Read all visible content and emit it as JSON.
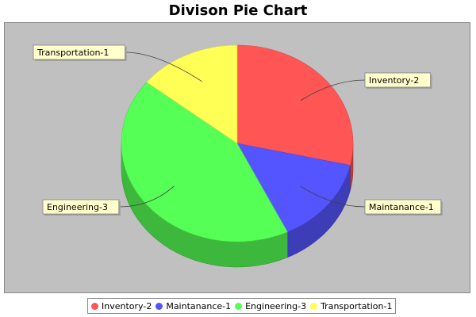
{
  "chart_data": {
    "type": "pie",
    "title": "Divison Pie Chart",
    "categories": [
      "Inventory-2",
      "Maintanance-1",
      "Engineering-3",
      "Transportation-1"
    ],
    "values": [
      2,
      1,
      3,
      1
    ],
    "colors": [
      "#ff5555",
      "#5555ff",
      "#55ff55",
      "#ffff55"
    ],
    "legend": "bottom",
    "three_d": true,
    "background": "#c0c0c0"
  }
}
